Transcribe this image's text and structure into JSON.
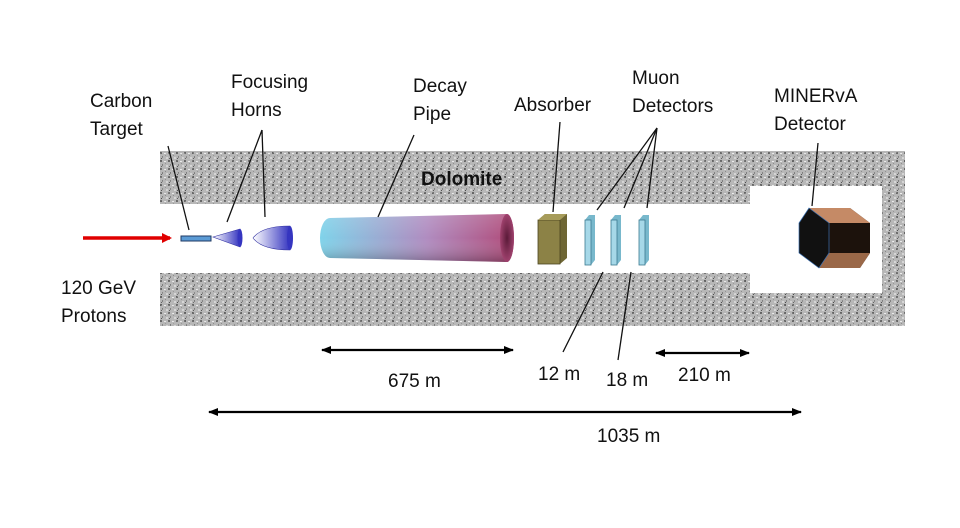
{
  "labels": {
    "carbon_target": [
      "Carbon",
      "Target"
    ],
    "focusing_horns": [
      "Focusing",
      "Horns"
    ],
    "decay_pipe": [
      "Decay",
      "Pipe"
    ],
    "absorber": "Absorber",
    "muon_detectors": [
      "Muon",
      "Detectors"
    ],
    "minerva_detector": [
      "MINERvA",
      "Detector"
    ],
    "dolomite": "Dolomite",
    "protons": [
      "120 GeV",
      "Protons"
    ]
  },
  "distances": {
    "decay_pipe": "675 m",
    "muon_gap_1": "12 m",
    "muon_gap_2": "18 m",
    "minerva_gap": "210 m",
    "total": "1035 m"
  },
  "colors": {
    "beam_arrow": "#e00000",
    "rock": "#9a9a9a",
    "decay_pipe_left": "#7fd3ea",
    "decay_pipe_right": "#7a2850",
    "absorber": "#8c8246",
    "muon_detector": "#a6d8e8",
    "minerva_top": "#c58a66",
    "minerva_front": "#1a1a1a",
    "horn": "#4040c0"
  }
}
